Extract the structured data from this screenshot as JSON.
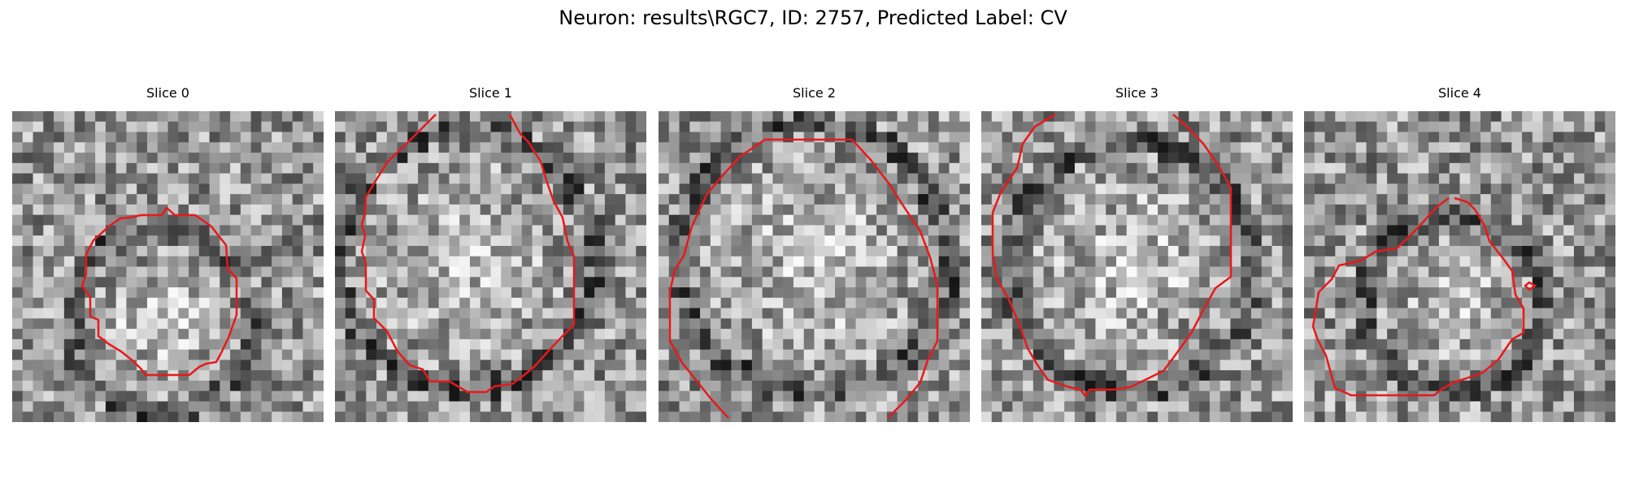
{
  "figure": {
    "title": "Neuron: results\\RGC7, ID: 2757, Predicted Label: CV"
  },
  "slices": [
    {
      "label": "Slice 0",
      "seed": 11,
      "bright_center": [
        0.48,
        0.68
      ],
      "bright_radius": 0.26
    },
    {
      "label": "Slice 1",
      "seed": 23,
      "bright_center": [
        0.42,
        0.48
      ],
      "bright_radius": 0.38
    },
    {
      "label": "Slice 2",
      "seed": 37,
      "bright_center": [
        0.5,
        0.48
      ],
      "bright_radius": 0.4
    },
    {
      "label": "Slice 3",
      "seed": 41,
      "bright_center": [
        0.48,
        0.5
      ],
      "bright_radius": 0.36
    },
    {
      "label": "Slice 4",
      "seed": 59,
      "bright_center": [
        0.48,
        0.62
      ],
      "bright_radius": 0.25
    }
  ],
  "colors": {
    "contour": "#e8191b"
  },
  "grid_size": 30
}
